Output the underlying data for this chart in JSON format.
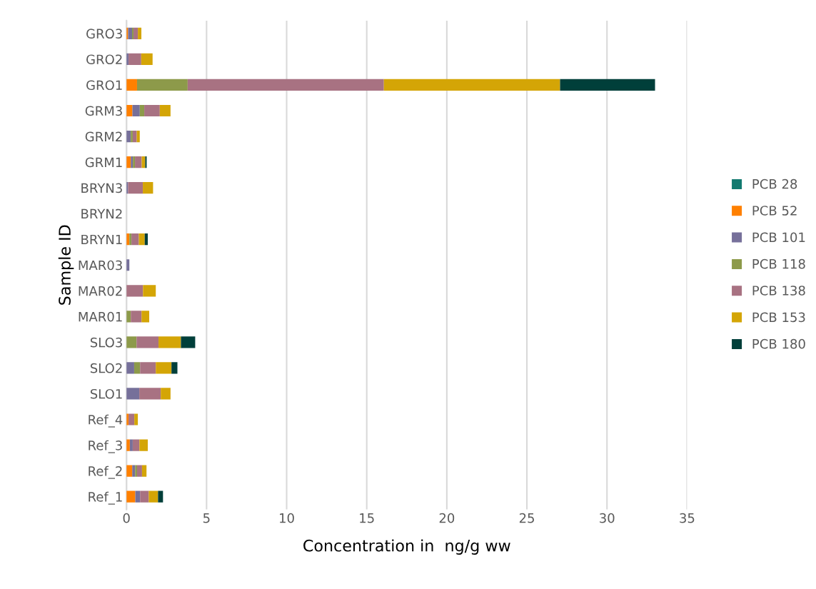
{
  "chart_data": {
    "type": "bar",
    "orientation": "horizontal",
    "stacked": true,
    "xlabel": "Concentration in  ng/g ww",
    "ylabel": "Sample ID",
    "categories": [
      "GRO3",
      "GRO2",
      "GRO1",
      "GRM3",
      "GRM2",
      "GRM1",
      "BRYN3",
      "BRYN2",
      "BRYN1",
      "MAR03",
      "MAR02",
      "MAR01",
      "SLO3",
      "SLO2",
      "SLO1",
      "Ref_4",
      "Ref_3",
      "Ref_2",
      "Ref_1"
    ],
    "series": [
      {
        "name": "PCB 28",
        "color": "#137a70",
        "values": [
          null,
          null,
          null,
          null,
          null,
          null,
          null,
          null,
          null,
          null,
          null,
          null,
          null,
          null,
          null,
          null,
          null,
          null,
          null
        ]
      },
      {
        "name": "PCB 52",
        "color": "#ff8000",
        "values": [
          0.1,
          null,
          0.66,
          0.37,
          null,
          0.27,
          null,
          null,
          0.18,
          null,
          null,
          null,
          null,
          null,
          null,
          0.13,
          0.21,
          0.36,
          0.55
        ]
      },
      {
        "name": "PCB 101",
        "color": "#76709a",
        "values": [
          0.25,
          0.13,
          null,
          0.46,
          0.27,
          0.13,
          0.1,
          null,
          null,
          0.18,
          null,
          null,
          null,
          0.48,
          0.8,
          null,
          0.18,
          0.18,
          0.3
        ]
      },
      {
        "name": "PCB 118",
        "color": "#8d9a4a",
        "values": [
          0.09,
          null,
          3.16,
          0.28,
          0.12,
          0.13,
          null,
          null,
          0.13,
          null,
          null,
          0.27,
          0.63,
          0.37,
          null,
          null,
          null,
          0.12,
          null
        ]
      },
      {
        "name": "PCB 138",
        "color": "#a87282",
        "values": [
          0.27,
          0.79,
          12.25,
          0.97,
          0.25,
          0.42,
          0.92,
          null,
          0.46,
          null,
          1.03,
          0.67,
          1.37,
          0.98,
          1.34,
          0.36,
          0.42,
          0.31,
          0.54
        ]
      },
      {
        "name": "PCB 153",
        "color": "#d4a506",
        "values": [
          0.22,
          0.71,
          11.0,
          0.67,
          0.19,
          0.22,
          0.64,
          null,
          0.37,
          null,
          0.8,
          0.48,
          1.4,
          0.98,
          0.61,
          0.22,
          0.52,
          0.28,
          0.58
        ]
      },
      {
        "name": "PCB 180",
        "color": "#003f3a",
        "values": [
          null,
          null,
          5.93,
          null,
          null,
          0.09,
          null,
          null,
          0.19,
          null,
          null,
          null,
          0.89,
          0.37,
          null,
          null,
          null,
          null,
          0.31
        ]
      }
    ],
    "xlim": [
      0,
      35
    ],
    "xticks": [
      0,
      5,
      10,
      15,
      20,
      25,
      30,
      35
    ],
    "grid": "x",
    "legend": "right"
  }
}
